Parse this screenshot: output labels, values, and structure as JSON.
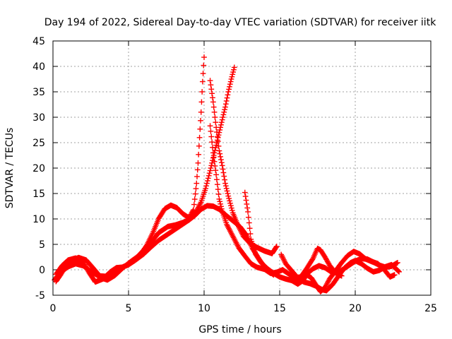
{
  "chart_data": {
    "type": "scatter",
    "title": "Day 194 of 2022, Sidereal Day-to-day VTEC variation (SDTVAR) for receiver iitk",
    "xlabel": "GPS time / hours",
    "ylabel": "SDTVAR / TECUs",
    "xlim": [
      0,
      25
    ],
    "ylim": [
      -5,
      45
    ],
    "xticks": [
      0,
      5,
      10,
      15,
      20,
      25
    ],
    "yticks": [
      -5,
      0,
      5,
      10,
      15,
      20,
      25,
      30,
      35,
      40,
      45
    ],
    "grid": true,
    "marker": "plus",
    "series": [
      {
        "color": "#ff0000",
        "points": [
          [
            0.2,
            -2.3
          ],
          [
            0.5,
            -1.0
          ],
          [
            0.8,
            0.5
          ],
          [
            1.2,
            1.8
          ],
          [
            1.7,
            2.4
          ],
          [
            2.2,
            1.9
          ],
          [
            2.7,
            0.2
          ],
          [
            3.2,
            -1.6
          ],
          [
            3.6,
            -2.0
          ],
          [
            4.1,
            -1.1
          ],
          [
            4.6,
            0.3
          ],
          [
            5.0,
            1.3
          ],
          [
            5.6,
            2.6
          ],
          [
            6.1,
            4.2
          ],
          [
            6.6,
            5.8
          ],
          [
            7.0,
            7.3
          ],
          [
            7.6,
            8.5
          ],
          [
            8.1,
            8.8
          ],
          [
            8.6,
            9.3
          ],
          [
            9.0,
            9.8
          ],
          [
            9.4,
            10.7
          ],
          [
            9.8,
            11.9
          ],
          [
            10.2,
            12.6
          ],
          [
            10.6,
            12.5
          ],
          [
            11.0,
            11.9
          ],
          [
            11.5,
            10.6
          ],
          [
            12.0,
            9.4
          ],
          [
            12.4,
            8.4
          ],
          [
            12.8,
            6.8
          ],
          [
            13.2,
            4.2
          ],
          [
            13.7,
            1.8
          ],
          [
            14.2,
            -0.1
          ],
          [
            14.6,
            -1.0
          ]
        ]
      },
      {
        "color": "#ff0000",
        "points": [
          [
            0.1,
            -2.0
          ],
          [
            0.3,
            -1.2
          ],
          [
            0.6,
            -0.3
          ],
          [
            1.0,
            0.6
          ],
          [
            1.5,
            1.2
          ],
          [
            2.0,
            0.8
          ],
          [
            2.5,
            -0.3
          ],
          [
            3.0,
            -1.2
          ],
          [
            3.5,
            -1.3
          ],
          [
            4.0,
            -0.5
          ],
          [
            4.5,
            0.4
          ],
          [
            5.0,
            1.0
          ],
          [
            5.5,
            2.0
          ],
          [
            6.0,
            3.1
          ],
          [
            6.5,
            4.5
          ],
          [
            7.0,
            5.8
          ],
          [
            7.5,
            6.8
          ],
          [
            8.0,
            7.8
          ],
          [
            8.5,
            8.8
          ],
          [
            9.0,
            9.8
          ],
          [
            9.4,
            11.0
          ],
          [
            9.8,
            13.3
          ],
          [
            10.1,
            16.0
          ],
          [
            10.4,
            19.5
          ],
          [
            10.6,
            22.0
          ],
          [
            10.8,
            24.5
          ],
          [
            11.0,
            27.0
          ],
          [
            11.2,
            29.5
          ],
          [
            11.4,
            32.0
          ],
          [
            11.6,
            35.0
          ],
          [
            11.8,
            37.5
          ],
          [
            12.0,
            39.8
          ]
        ]
      },
      {
        "color": "#ff0000",
        "points": [
          [
            0.2,
            -0.9
          ],
          [
            0.6,
            0.8
          ],
          [
            1.0,
            1.9
          ],
          [
            1.5,
            2.3
          ],
          [
            2.0,
            1.5
          ],
          [
            2.4,
            -0.6
          ],
          [
            2.8,
            -2.4
          ],
          [
            3.3,
            -1.8
          ],
          [
            3.8,
            -0.4
          ],
          [
            4.2,
            0.4
          ],
          [
            4.6,
            0.5
          ],
          [
            5.0,
            1.1
          ],
          [
            5.4,
            1.8
          ],
          [
            5.8,
            3.0
          ],
          [
            6.2,
            4.8
          ],
          [
            6.6,
            7.2
          ],
          [
            7.0,
            10.1
          ],
          [
            7.4,
            12.0
          ],
          [
            7.8,
            12.7
          ],
          [
            8.2,
            12.2
          ],
          [
            8.6,
            11.0
          ],
          [
            9.0,
            10.2
          ],
          [
            9.3,
            11.8
          ],
          [
            9.5,
            17.0
          ],
          [
            9.6,
            21.0
          ],
          [
            9.7,
            26.0
          ],
          [
            9.8,
            31.0
          ],
          [
            9.9,
            37.0
          ],
          [
            10.0,
            41.8
          ]
        ]
      },
      {
        "color": "#ff0000",
        "points": [
          [
            10.4,
            37.2
          ],
          [
            10.6,
            33.0
          ],
          [
            10.8,
            28.0
          ],
          [
            11.0,
            23.4
          ],
          [
            11.2,
            20.5
          ],
          [
            11.4,
            17.0
          ],
          [
            11.6,
            14.5
          ],
          [
            11.9,
            11.2
          ],
          [
            12.2,
            9.0
          ],
          [
            12.6,
            6.6
          ],
          [
            13.0,
            5.3
          ],
          [
            13.5,
            4.4
          ],
          [
            14.0,
            3.7
          ],
          [
            14.5,
            3.2
          ],
          [
            14.8,
            4.6
          ]
        ]
      },
      {
        "color": "#ff0000",
        "points": [
          [
            10.4,
            28.3
          ],
          [
            10.6,
            23.0
          ],
          [
            10.8,
            18.7
          ],
          [
            11.0,
            13.9
          ],
          [
            11.2,
            11.5
          ],
          [
            11.5,
            8.9
          ],
          [
            11.9,
            6.6
          ],
          [
            12.3,
            4.3
          ],
          [
            12.7,
            2.7
          ],
          [
            13.1,
            1.2
          ],
          [
            13.5,
            0.5
          ],
          [
            14.0,
            0.1
          ],
          [
            14.4,
            -0.7
          ],
          [
            14.8,
            -0.5
          ],
          [
            15.2,
            0.0
          ],
          [
            15.6,
            -0.8
          ],
          [
            16.0,
            -1.6
          ],
          [
            16.4,
            -1.4
          ],
          [
            16.8,
            0.3
          ],
          [
            17.2,
            2.2
          ],
          [
            17.5,
            4.2
          ],
          [
            17.7,
            3.9
          ],
          [
            18.0,
            2.5
          ],
          [
            18.3,
            0.9
          ],
          [
            18.7,
            -0.6
          ],
          [
            19.1,
            -1.2
          ]
        ]
      },
      {
        "color": "#ff0000",
        "points": [
          [
            12.7,
            15.2
          ],
          [
            12.9,
            11.4
          ],
          [
            13.1,
            6.0
          ],
          [
            13.4,
            3.1
          ],
          [
            13.8,
            1.3
          ],
          [
            14.2,
            0.2
          ],
          [
            14.6,
            -0.7
          ],
          [
            15.0,
            -1.4
          ],
          [
            15.4,
            -1.8
          ],
          [
            15.8,
            -2.1
          ],
          [
            16.2,
            -2.8
          ],
          [
            16.5,
            -2.2
          ],
          [
            16.8,
            -1.0
          ],
          [
            17.1,
            -1.6
          ],
          [
            17.4,
            -3.0
          ],
          [
            17.7,
            -4.3
          ],
          [
            18.0,
            -3.5
          ],
          [
            18.3,
            -1.8
          ],
          [
            18.7,
            -0.2
          ],
          [
            19.1,
            1.4
          ],
          [
            19.5,
            2.8
          ],
          [
            19.9,
            3.6
          ],
          [
            20.3,
            3.1
          ],
          [
            20.7,
            2.1
          ],
          [
            21.1,
            1.6
          ],
          [
            21.5,
            1.2
          ],
          [
            21.9,
            0.1
          ],
          [
            22.3,
            -1.4
          ],
          [
            22.6,
            -1.0
          ]
        ]
      },
      {
        "color": "#ff0000",
        "points": [
          [
            15.1,
            3.0
          ],
          [
            15.4,
            1.2
          ],
          [
            15.8,
            -0.2
          ],
          [
            16.2,
            -1.6
          ],
          [
            16.6,
            -2.4
          ],
          [
            17.0,
            -2.7
          ],
          [
            17.4,
            -3.2
          ],
          [
            17.8,
            -3.9
          ],
          [
            18.1,
            -4.1
          ],
          [
            18.5,
            -2.9
          ],
          [
            18.9,
            -1.2
          ],
          [
            19.3,
            0.4
          ],
          [
            19.7,
            1.4
          ],
          [
            20.0,
            1.8
          ],
          [
            20.4,
            1.2
          ],
          [
            20.8,
            0.3
          ],
          [
            21.2,
            -0.4
          ],
          [
            21.6,
            -0.1
          ],
          [
            22.0,
            0.6
          ],
          [
            22.4,
            1.0
          ],
          [
            22.7,
            0.2
          ],
          [
            22.9,
            -0.4
          ]
        ]
      },
      {
        "color": "#ff0000",
        "points": [
          [
            16.0,
            -2.4
          ],
          [
            16.4,
            -1.5
          ],
          [
            16.8,
            -0.8
          ],
          [
            17.2,
            0.2
          ],
          [
            17.6,
            0.8
          ],
          [
            18.0,
            0.4
          ],
          [
            18.4,
            -0.4
          ],
          [
            18.8,
            -0.6
          ],
          [
            19.2,
            0.1
          ],
          [
            19.6,
            0.9
          ],
          [
            20.0,
            1.7
          ],
          [
            20.4,
            2.2
          ],
          [
            20.8,
            2.1
          ],
          [
            21.2,
            1.5
          ],
          [
            21.6,
            0.9
          ],
          [
            22.0,
            0.5
          ],
          [
            22.4,
            0.7
          ],
          [
            22.8,
            1.4
          ]
        ]
      }
    ]
  }
}
